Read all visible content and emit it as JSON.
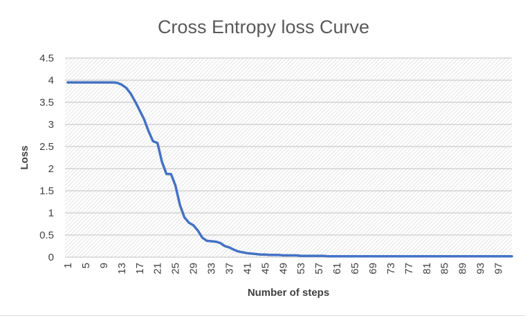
{
  "chart_data": {
    "type": "line",
    "title": "Cross Entropy loss Curve",
    "xlabel": "Number of steps",
    "ylabel": "Loss",
    "ylim": [
      0,
      4.5
    ],
    "xlim": [
      1,
      100
    ],
    "y_ticks": [
      "0",
      "0.5",
      "1",
      "1.5",
      "2",
      "2.5",
      "3",
      "3.5",
      "4",
      "4.5"
    ],
    "x_ticks": [
      "1",
      "5",
      "9",
      "13",
      "17",
      "21",
      "25",
      "29",
      "33",
      "37",
      "41",
      "45",
      "49",
      "53",
      "57",
      "61",
      "65",
      "69",
      "73",
      "77",
      "81",
      "85",
      "89",
      "93",
      "97"
    ],
    "grid": true,
    "background_pattern": "diagonal-hatch",
    "series": [
      {
        "color": "#4472C4",
        "x": [
          1,
          2,
          3,
          4,
          5,
          6,
          7,
          8,
          9,
          10,
          11,
          12,
          13,
          14,
          15,
          16,
          17,
          18,
          19,
          20,
          21,
          22,
          23,
          24,
          25,
          26,
          27,
          28,
          29,
          30,
          31,
          32,
          33,
          34,
          35,
          36,
          37,
          38,
          39,
          40,
          41,
          42,
          43,
          44,
          45,
          46,
          47,
          48,
          49,
          50,
          51,
          52,
          53,
          54,
          55,
          56,
          57,
          58,
          59,
          60,
          61,
          62,
          63,
          64,
          65,
          66,
          67,
          68,
          69,
          70,
          71,
          72,
          73,
          74,
          75,
          76,
          77,
          78,
          79,
          80,
          81,
          82,
          83,
          84,
          85,
          86,
          87,
          88,
          89,
          90,
          91,
          92,
          93,
          94,
          95,
          96,
          97,
          98,
          99,
          100
        ],
        "y": [
          3.95,
          3.95,
          3.95,
          3.95,
          3.95,
          3.95,
          3.95,
          3.95,
          3.95,
          3.95,
          3.95,
          3.94,
          3.9,
          3.83,
          3.7,
          3.52,
          3.32,
          3.12,
          2.85,
          2.62,
          2.58,
          2.15,
          1.88,
          1.88,
          1.62,
          1.18,
          0.9,
          0.78,
          0.72,
          0.6,
          0.44,
          0.37,
          0.36,
          0.35,
          0.32,
          0.25,
          0.22,
          0.17,
          0.13,
          0.11,
          0.09,
          0.08,
          0.07,
          0.06,
          0.06,
          0.05,
          0.05,
          0.05,
          0.04,
          0.04,
          0.04,
          0.04,
          0.03,
          0.03,
          0.03,
          0.03,
          0.03,
          0.03,
          0.02,
          0.02,
          0.02,
          0.02,
          0.02,
          0.02,
          0.02,
          0.02,
          0.02,
          0.02,
          0.02,
          0.02,
          0.02,
          0.02,
          0.02,
          0.02,
          0.02,
          0.02,
          0.02,
          0.02,
          0.02,
          0.02,
          0.02,
          0.02,
          0.02,
          0.02,
          0.02,
          0.02,
          0.02,
          0.02,
          0.02,
          0.02,
          0.02,
          0.02,
          0.02,
          0.02,
          0.02,
          0.02,
          0.02,
          0.02,
          0.02,
          0.02
        ]
      }
    ]
  }
}
